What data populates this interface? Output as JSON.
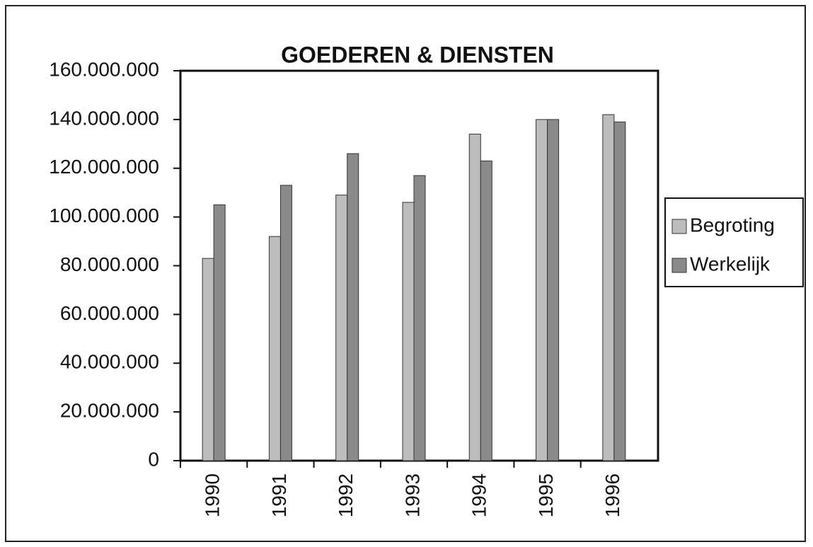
{
  "chart_data": {
    "type": "bar",
    "title": "GOEDEREN & DIENSTEN",
    "categories": [
      "1990",
      "1991",
      "1992",
      "1993",
      "1994",
      "1995",
      "1996"
    ],
    "series": [
      {
        "name": "Begroting",
        "color": "#bdbdbd",
        "values": [
          83000000,
          92000000,
          109000000,
          106000000,
          134000000,
          140000000,
          142000000
        ]
      },
      {
        "name": "Werkelijk",
        "color": "#8a8a8a",
        "values": [
          105000000,
          113000000,
          126000000,
          117000000,
          123000000,
          140000000,
          139000000
        ]
      }
    ],
    "ylim": [
      0,
      160000000
    ],
    "yticks": [
      0,
      {
        "value": 20000000,
        "label": "20.000.000"
      },
      {
        "value": 40000000,
        "label": "40.000.000"
      },
      {
        "value": 60000000,
        "label": "60.000.000"
      },
      {
        "value": 80000000,
        "label": "80.000.000"
      },
      {
        "value": 100000000,
        "label": "100.000.000"
      },
      {
        "value": 120000000,
        "label": "120.000.000"
      },
      {
        "value": 140000000,
        "label": "140.000.000"
      },
      {
        "value": 160000000,
        "label": "160.000.000"
      }
    ],
    "grid": false,
    "legend": "right"
  }
}
